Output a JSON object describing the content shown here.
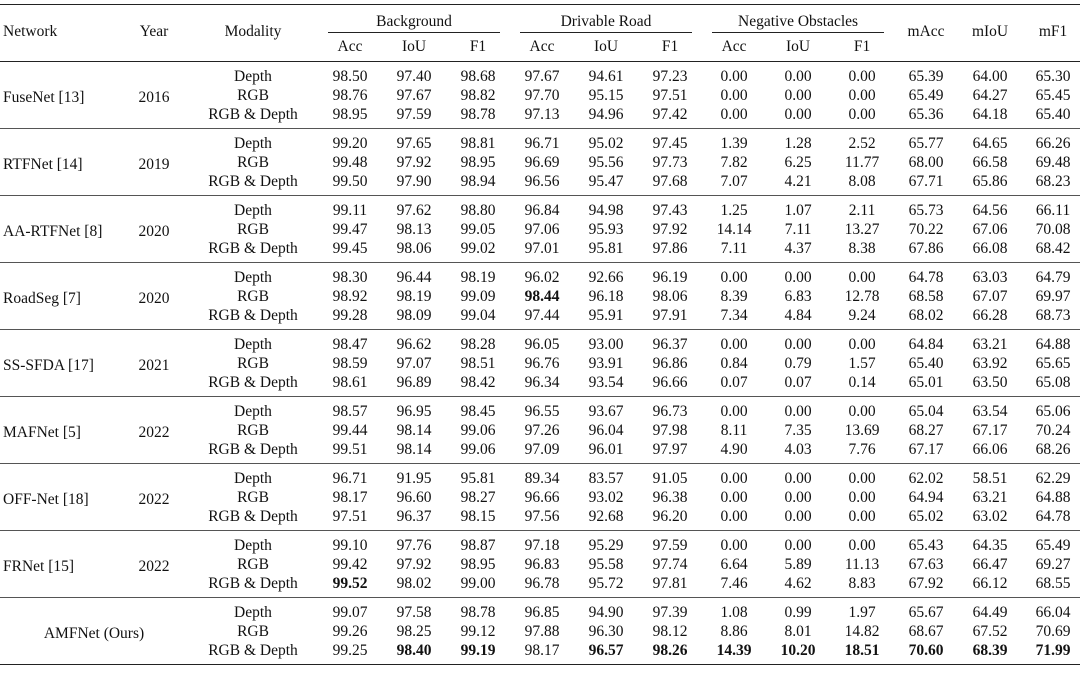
{
  "header": {
    "network": "Network",
    "year": "Year",
    "modality": "Modality",
    "groups": [
      "Background",
      "Drivable Road",
      "Negative Obstacles"
    ],
    "sub": [
      "Acc",
      "IoU",
      "F1"
    ],
    "mAcc": "mAcc",
    "mIoU": "mIoU",
    "mF1": "mF1"
  },
  "rows": [
    {
      "network": "FuseNet [13]",
      "year": "2016",
      "entries": [
        {
          "modality": "Depth",
          "vals": [
            "98.50",
            "97.40",
            "98.68",
            "97.67",
            "94.61",
            "97.23",
            "0.00",
            "0.00",
            "0.00",
            "65.39",
            "64.00",
            "65.30"
          ]
        },
        {
          "modality": "RGB",
          "vals": [
            "98.76",
            "97.67",
            "98.82",
            "97.70",
            "95.15",
            "97.51",
            "0.00",
            "0.00",
            "0.00",
            "65.49",
            "64.27",
            "65.45"
          ]
        },
        {
          "modality": "RGB & Depth",
          "vals": [
            "98.95",
            "97.59",
            "98.78",
            "97.13",
            "94.96",
            "97.42",
            "0.00",
            "0.00",
            "0.00",
            "65.36",
            "64.18",
            "65.40"
          ]
        }
      ]
    },
    {
      "network": "RTFNet [14]",
      "year": "2019",
      "entries": [
        {
          "modality": "Depth",
          "vals": [
            "99.20",
            "97.65",
            "98.81",
            "96.71",
            "95.02",
            "97.45",
            "1.39",
            "1.28",
            "2.52",
            "65.77",
            "64.65",
            "66.26"
          ]
        },
        {
          "modality": "RGB",
          "vals": [
            "99.48",
            "97.92",
            "98.95",
            "96.69",
            "95.56",
            "97.73",
            "7.82",
            "6.25",
            "11.77",
            "68.00",
            "66.58",
            "69.48"
          ]
        },
        {
          "modality": "RGB & Depth",
          "vals": [
            "99.50",
            "97.90",
            "98.94",
            "96.56",
            "95.47",
            "97.68",
            "7.07",
            "4.21",
            "8.08",
            "67.71",
            "65.86",
            "68.23"
          ]
        }
      ]
    },
    {
      "network": "AA-RTFNet [8]",
      "year": "2020",
      "entries": [
        {
          "modality": "Depth",
          "vals": [
            "99.11",
            "97.62",
            "98.80",
            "96.84",
            "94.98",
            "97.43",
            "1.25",
            "1.07",
            "2.11",
            "65.73",
            "64.56",
            "66.11"
          ]
        },
        {
          "modality": "RGB",
          "vals": [
            "99.47",
            "98.13",
            "99.05",
            "97.06",
            "95.93",
            "97.92",
            "14.14",
            "7.11",
            "13.27",
            "70.22",
            "67.06",
            "70.08"
          ]
        },
        {
          "modality": "RGB & Depth",
          "vals": [
            "99.45",
            "98.06",
            "99.02",
            "97.01",
            "95.81",
            "97.86",
            "7.11",
            "4.37",
            "8.38",
            "67.86",
            "66.08",
            "68.42"
          ]
        }
      ]
    },
    {
      "network": "RoadSeg [7]",
      "year": "2020",
      "entries": [
        {
          "modality": "Depth",
          "vals": [
            "98.30",
            "96.44",
            "98.19",
            "96.02",
            "92.66",
            "96.19",
            "0.00",
            "0.00",
            "0.00",
            "64.78",
            "63.03",
            "64.79"
          ]
        },
        {
          "modality": "RGB",
          "vals": [
            "98.92",
            "98.19",
            "99.09",
            "98.44",
            "96.18",
            "98.06",
            "8.39",
            "6.83",
            "12.78",
            "68.58",
            "67.07",
            "69.97"
          ],
          "bold": [
            3
          ]
        },
        {
          "modality": "RGB & Depth",
          "vals": [
            "99.28",
            "98.09",
            "99.04",
            "97.44",
            "95.91",
            "97.91",
            "7.34",
            "4.84",
            "9.24",
            "68.02",
            "66.28",
            "68.73"
          ]
        }
      ]
    },
    {
      "network": "SS-SFDA [17]",
      "year": "2021",
      "entries": [
        {
          "modality": "Depth",
          "vals": [
            "98.47",
            "96.62",
            "98.28",
            "96.05",
            "93.00",
            "96.37",
            "0.00",
            "0.00",
            "0.00",
            "64.84",
            "63.21",
            "64.88"
          ]
        },
        {
          "modality": "RGB",
          "vals": [
            "98.59",
            "97.07",
            "98.51",
            "96.76",
            "93.91",
            "96.86",
            "0.84",
            "0.79",
            "1.57",
            "65.40",
            "63.92",
            "65.65"
          ]
        },
        {
          "modality": "RGB & Depth",
          "vals": [
            "98.61",
            "96.89",
            "98.42",
            "96.34",
            "93.54",
            "96.66",
            "0.07",
            "0.07",
            "0.14",
            "65.01",
            "63.50",
            "65.08"
          ]
        }
      ]
    },
    {
      "network": "MAFNet [5]",
      "year": "2022",
      "entries": [
        {
          "modality": "Depth",
          "vals": [
            "98.57",
            "96.95",
            "98.45",
            "96.55",
            "93.67",
            "96.73",
            "0.00",
            "0.00",
            "0.00",
            "65.04",
            "63.54",
            "65.06"
          ]
        },
        {
          "modality": "RGB",
          "vals": [
            "99.44",
            "98.14",
            "99.06",
            "97.26",
            "96.04",
            "97.98",
            "8.11",
            "7.35",
            "13.69",
            "68.27",
            "67.17",
            "70.24"
          ]
        },
        {
          "modality": "RGB & Depth",
          "vals": [
            "99.51",
            "98.14",
            "99.06",
            "97.09",
            "96.01",
            "97.97",
            "4.90",
            "4.03",
            "7.76",
            "67.17",
            "66.06",
            "68.26"
          ]
        }
      ]
    },
    {
      "network": "OFF-Net [18]",
      "year": "2022",
      "entries": [
        {
          "modality": "Depth",
          "vals": [
            "96.71",
            "91.95",
            "95.81",
            "89.34",
            "83.57",
            "91.05",
            "0.00",
            "0.00",
            "0.00",
            "62.02",
            "58.51",
            "62.29"
          ]
        },
        {
          "modality": "RGB",
          "vals": [
            "98.17",
            "96.60",
            "98.27",
            "96.66",
            "93.02",
            "96.38",
            "0.00",
            "0.00",
            "0.00",
            "64.94",
            "63.21",
            "64.88"
          ]
        },
        {
          "modality": "RGB & Depth",
          "vals": [
            "97.51",
            "96.37",
            "98.15",
            "97.56",
            "92.68",
            "96.20",
            "0.00",
            "0.00",
            "0.00",
            "65.02",
            "63.02",
            "64.78"
          ]
        }
      ]
    },
    {
      "network": "FRNet [15]",
      "year": "2022",
      "entries": [
        {
          "modality": "Depth",
          "vals": [
            "99.10",
            "97.76",
            "98.87",
            "97.18",
            "95.29",
            "97.59",
            "0.00",
            "0.00",
            "0.00",
            "65.43",
            "64.35",
            "65.49"
          ]
        },
        {
          "modality": "RGB",
          "vals": [
            "99.42",
            "97.92",
            "98.95",
            "96.83",
            "95.58",
            "97.74",
            "6.64",
            "5.89",
            "11.13",
            "67.63",
            "66.47",
            "69.27"
          ]
        },
        {
          "modality": "RGB & Depth",
          "vals": [
            "99.52",
            "98.02",
            "99.00",
            "96.78",
            "95.72",
            "97.81",
            "7.46",
            "4.62",
            "8.83",
            "67.92",
            "66.12",
            "68.55"
          ],
          "bold": [
            0
          ]
        }
      ]
    },
    {
      "network": "AMFNet (Ours)",
      "year": "",
      "ours": true,
      "entries": [
        {
          "modality": "Depth",
          "vals": [
            "99.07",
            "97.58",
            "98.78",
            "96.85",
            "94.90",
            "97.39",
            "1.08",
            "0.99",
            "1.97",
            "65.67",
            "64.49",
            "66.04"
          ]
        },
        {
          "modality": "RGB",
          "vals": [
            "99.26",
            "98.25",
            "99.12",
            "97.88",
            "96.30",
            "98.12",
            "8.86",
            "8.01",
            "14.82",
            "68.67",
            "67.52",
            "70.69"
          ]
        },
        {
          "modality": "RGB & Depth",
          "vals": [
            "99.25",
            "98.40",
            "99.19",
            "98.17",
            "96.57",
            "98.26",
            "14.39",
            "10.20",
            "18.51",
            "70.60",
            "68.39",
            "71.99"
          ],
          "bold": [
            1,
            2,
            4,
            5,
            6,
            7,
            8,
            9,
            10,
            11
          ]
        }
      ]
    }
  ]
}
